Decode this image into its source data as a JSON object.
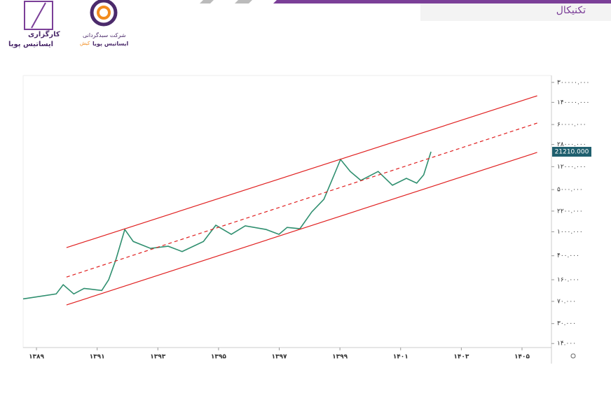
{
  "header": {
    "section": "تکنیکال",
    "logo_left_line1": "کارگزاری",
    "logo_left_line2": "ایساتیس پویا",
    "logo_right_line1": "شرکت سبدگردانی",
    "logo_right_line2": "ایساتیس پویا",
    "logo_right_tag": "کیش"
  },
  "chart_data": {
    "type": "line",
    "log_y": true,
    "grid": false,
    "xlim": [
      1388.56,
      1405.97
    ],
    "ylim": [
      12,
      390000
    ],
    "xticks": [
      {
        "value": 1389,
        "label": "۱۳۸۹"
      },
      {
        "value": 1391,
        "label": "۱۳۹۱"
      },
      {
        "value": 1393,
        "label": "۱۳۹۳"
      },
      {
        "value": 1395,
        "label": "۱۳۹۵"
      },
      {
        "value": 1397,
        "label": "۱۳۹۷"
      },
      {
        "value": 1399,
        "label": "۱۳۹۹"
      },
      {
        "value": 1401,
        "label": "۱۴۰۱"
      },
      {
        "value": 1403,
        "label": "۱۴۰۳"
      },
      {
        "value": 1405,
        "label": "۱۴۰۵"
      }
    ],
    "yticks": [
      {
        "value": 300000,
        "label": "۳۰۰۰۰۰.۰۰۰"
      },
      {
        "value": 140000,
        "label": "۱۴۰۰۰۰.۰۰۰"
      },
      {
        "value": 60000,
        "label": "۶۰۰۰۰.۰۰۰"
      },
      {
        "value": 28000,
        "label": "۲۸۰۰۰.۰۰۰"
      },
      {
        "value": 12000,
        "label": "۱۲۰۰۰.۰۰۰"
      },
      {
        "value": 5000,
        "label": "۵۰۰۰.۰۰۰"
      },
      {
        "value": 2200,
        "label": "۲۲۰۰.۰۰۰"
      },
      {
        "value": 1000,
        "label": "۱۰۰۰.۰۰۰"
      },
      {
        "value": 400,
        "label": "۴۰۰.۰۰۰"
      },
      {
        "value": 160,
        "label": "۱۶۰.۰۰۰"
      },
      {
        "value": 70,
        "label": "۷۰.۰۰۰"
      },
      {
        "value": 30,
        "label": "۳۰.۰۰۰"
      },
      {
        "value": 14,
        "label": "۱۴.۰۰۰"
      }
    ],
    "series": [
      {
        "color": "#2f8f6f",
        "width": 1.6,
        "dash": false,
        "x": [
          1388.56,
          1389.65,
          1389.88,
          1390.23,
          1390.57,
          1391.15,
          1391.38,
          1391.61,
          1391.91,
          1392.19,
          1392.76,
          1393.34,
          1393.8,
          1394.5,
          1394.91,
          1395.42,
          1395.88,
          1396.57,
          1396.99,
          1397.26,
          1397.68,
          1398.07,
          1398.47,
          1398.81,
          1399.02,
          1399.34,
          1399.69,
          1400.26,
          1400.73,
          1401.19,
          1401.53,
          1401.76,
          1402.0
        ],
        "values": [
          77,
          93,
          132,
          93,
          115,
          106,
          160,
          336,
          1090,
          690,
          530,
          575,
          470,
          690,
          1280,
          905,
          1250,
          1090,
          905,
          1180,
          1120,
          2130,
          3450,
          8800,
          15800,
          10000,
          7100,
          10000,
          5900,
          7700,
          6400,
          8800,
          21210
        ],
        "value_labels": [
          null,
          null,
          null,
          null,
          null,
          null,
          null,
          null,
          null,
          null,
          null,
          null,
          null,
          null,
          null,
          null,
          null,
          null,
          null,
          null,
          null,
          null,
          null,
          null,
          null,
          null,
          null,
          null,
          null,
          null,
          null,
          null,
          "21210.000"
        ]
      },
      {
        "color": "#e02020",
        "width": 1.2,
        "dash": false,
        "x": [
          1389.99,
          1405.5
        ],
        "values": [
          545,
          180000
        ]
      },
      {
        "color": "#e02020",
        "width": 1.2,
        "dash": true,
        "x": [
          1389.99,
          1405.5
        ],
        "values": [
          177,
          63500
        ]
      },
      {
        "color": "#e02020",
        "width": 1.2,
        "dash": false,
        "x": [
          1389.99,
          1405.5
        ],
        "values": [
          61,
          20700
        ]
      }
    ]
  }
}
